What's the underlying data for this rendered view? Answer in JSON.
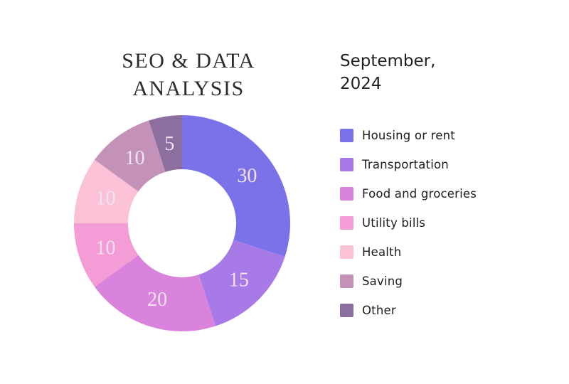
{
  "title": {
    "line1": "SEO & DATA",
    "line2": "ANALYSIS"
  },
  "date": {
    "line1": "September,",
    "line2": "2024"
  },
  "colors": {
    "background": "#ffffff",
    "title_text": "#2d2b2d",
    "date_text": "#212121",
    "legend_text": "#1c1c1c",
    "segment_label": "#f2e4ef"
  },
  "chart_data": {
    "type": "pie",
    "style": "donut",
    "title": "SEO & DATA ANALYSIS",
    "subtitle": "September, 2024",
    "start_angle_deg": 0,
    "direction": "clockwise",
    "total": 100,
    "inner_radius_ratio": 0.5,
    "value_labels_shown": true,
    "legend_position": "right",
    "segments": [
      {
        "label": "Housing or rent",
        "value": 30,
        "color": "#7b72e9"
      },
      {
        "label": "Transportation",
        "value": 15,
        "color": "#a87ae8"
      },
      {
        "label": "Food and groceries",
        "value": 20,
        "color": "#d983dc"
      },
      {
        "label": "Utility bills",
        "value": 10,
        "color": "#f49cd5"
      },
      {
        "label": "Health",
        "value": 10,
        "color": "#fbc2d7"
      },
      {
        "label": "Saving",
        "value": 10,
        "color": "#c492b8"
      },
      {
        "label": "Other",
        "value": 5,
        "color": "#8c6f9f"
      }
    ]
  }
}
